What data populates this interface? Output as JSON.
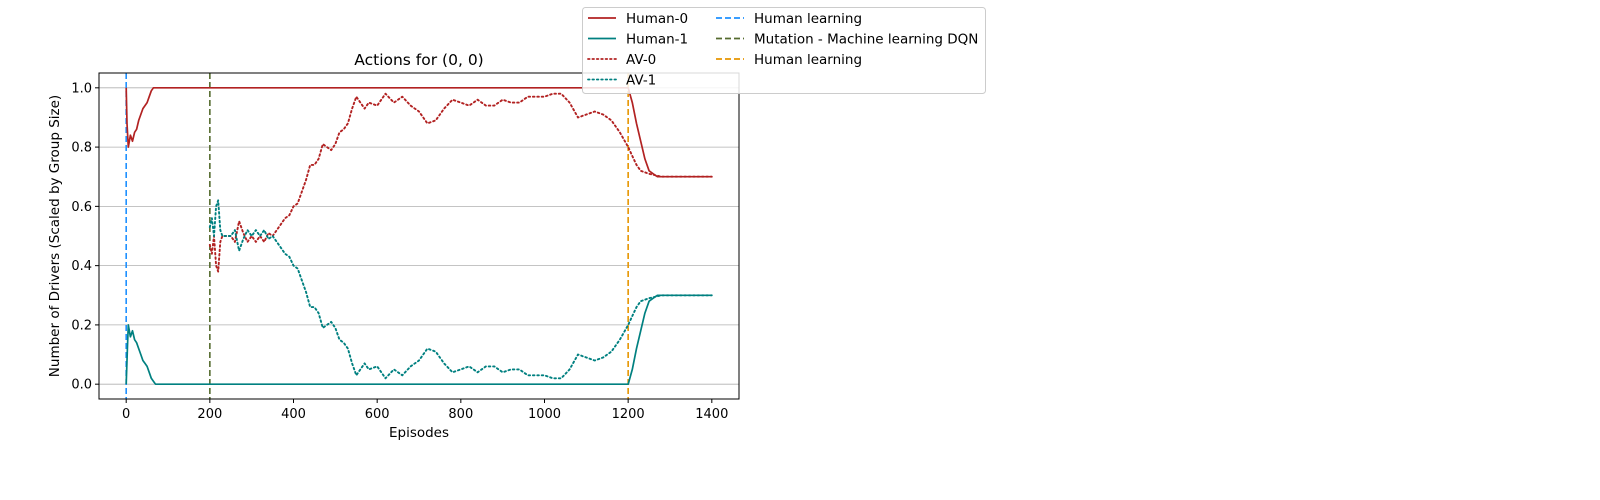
{
  "chart_data": {
    "type": "line",
    "title": "Actions for (0, 0)",
    "xlabel": "Episodes",
    "ylabel": "Number of Drivers (Scaled by Group Size)",
    "xlim": [
      -65,
      1465
    ],
    "ylim": [
      -0.05,
      1.05
    ],
    "xticks": [
      0,
      200,
      400,
      600,
      800,
      1000,
      1200,
      1400
    ],
    "yticks": [
      0.0,
      0.2,
      0.4,
      0.6,
      0.8,
      1.0
    ],
    "xtick_labels": [
      "0",
      "200",
      "400",
      "600",
      "800",
      "1000",
      "1200",
      "1400"
    ],
    "ytick_labels": [
      "0.0",
      "0.2",
      "0.4",
      "0.6",
      "0.8",
      "1.0"
    ],
    "grid": "y",
    "legend_position": "upper center, outside top-right of plot",
    "series": [
      {
        "name": "Human-0",
        "color": "#b22222",
        "style": "solid",
        "x": [
          0,
          2,
          5,
          10,
          15,
          20,
          25,
          30,
          35,
          40,
          45,
          50,
          55,
          60,
          65,
          70,
          75,
          80,
          200,
          600,
          1000,
          1200,
          1210,
          1220,
          1230,
          1240,
          1250,
          1260,
          1270,
          1280,
          1300,
          1400
        ],
        "y": [
          1.0,
          0.88,
          0.8,
          0.84,
          0.82,
          0.85,
          0.86,
          0.89,
          0.91,
          0.93,
          0.94,
          0.95,
          0.97,
          0.99,
          1.0,
          1.0,
          1.0,
          1.0,
          1.0,
          1.0,
          1.0,
          1.0,
          0.95,
          0.88,
          0.82,
          0.76,
          0.72,
          0.71,
          0.7,
          0.7,
          0.7,
          0.7
        ]
      },
      {
        "name": "Human-1",
        "color": "#008080",
        "style": "solid",
        "x": [
          0,
          3,
          5,
          10,
          15,
          20,
          25,
          30,
          35,
          40,
          45,
          50,
          55,
          60,
          65,
          70,
          75,
          80,
          200,
          600,
          1000,
          1200,
          1210,
          1220,
          1230,
          1240,
          1250,
          1260,
          1270,
          1280,
          1300,
          1400
        ],
        "y": [
          0.0,
          0.12,
          0.2,
          0.16,
          0.18,
          0.15,
          0.14,
          0.12,
          0.1,
          0.08,
          0.07,
          0.06,
          0.04,
          0.02,
          0.01,
          0.0,
          0.0,
          0.0,
          0.0,
          0.0,
          0.0,
          0.0,
          0.05,
          0.12,
          0.18,
          0.24,
          0.28,
          0.29,
          0.3,
          0.3,
          0.3,
          0.3
        ]
      },
      {
        "name": "AV-0",
        "color": "#b22222",
        "style": "dotted",
        "x": [
          200,
          205,
          210,
          215,
          220,
          225,
          230,
          240,
          250,
          260,
          270,
          280,
          290,
          300,
          310,
          320,
          330,
          340,
          350,
          360,
          370,
          380,
          390,
          400,
          410,
          420,
          430,
          440,
          450,
          460,
          470,
          480,
          490,
          500,
          510,
          520,
          530,
          540,
          550,
          560,
          570,
          580,
          600,
          620,
          640,
          660,
          680,
          700,
          720,
          740,
          760,
          780,
          800,
          820,
          840,
          860,
          880,
          900,
          920,
          940,
          960,
          980,
          1000,
          1020,
          1040,
          1060,
          1080,
          1100,
          1120,
          1140,
          1160,
          1180,
          1200,
          1210,
          1220,
          1230,
          1250,
          1280,
          1300,
          1400
        ],
        "y": [
          0.47,
          0.44,
          0.5,
          0.4,
          0.38,
          0.48,
          0.5,
          0.5,
          0.5,
          0.48,
          0.55,
          0.51,
          0.48,
          0.5,
          0.48,
          0.5,
          0.48,
          0.51,
          0.5,
          0.52,
          0.54,
          0.56,
          0.57,
          0.6,
          0.61,
          0.65,
          0.69,
          0.74,
          0.74,
          0.76,
          0.81,
          0.8,
          0.79,
          0.81,
          0.85,
          0.86,
          0.88,
          0.93,
          0.97,
          0.95,
          0.93,
          0.95,
          0.94,
          0.98,
          0.95,
          0.97,
          0.94,
          0.92,
          0.88,
          0.89,
          0.93,
          0.96,
          0.95,
          0.94,
          0.96,
          0.94,
          0.94,
          0.96,
          0.95,
          0.95,
          0.97,
          0.97,
          0.97,
          0.98,
          0.98,
          0.95,
          0.9,
          0.91,
          0.92,
          0.91,
          0.89,
          0.85,
          0.8,
          0.77,
          0.74,
          0.72,
          0.71,
          0.7,
          0.7,
          0.7
        ]
      },
      {
        "name": "AV-1",
        "color": "#008080",
        "style": "dotted",
        "x": [
          200,
          205,
          210,
          215,
          220,
          225,
          230,
          240,
          250,
          260,
          270,
          280,
          290,
          300,
          310,
          320,
          330,
          340,
          350,
          360,
          370,
          380,
          390,
          400,
          410,
          420,
          430,
          440,
          450,
          460,
          470,
          480,
          490,
          500,
          510,
          520,
          530,
          540,
          550,
          560,
          570,
          580,
          600,
          620,
          640,
          660,
          680,
          700,
          720,
          740,
          760,
          780,
          800,
          820,
          840,
          860,
          880,
          900,
          920,
          940,
          960,
          980,
          1000,
          1020,
          1040,
          1060,
          1080,
          1100,
          1120,
          1140,
          1160,
          1180,
          1200,
          1210,
          1220,
          1230,
          1250,
          1280,
          1300,
          1400
        ],
        "y": [
          0.53,
          0.56,
          0.5,
          0.6,
          0.62,
          0.52,
          0.5,
          0.5,
          0.5,
          0.52,
          0.45,
          0.49,
          0.52,
          0.5,
          0.52,
          0.5,
          0.52,
          0.49,
          0.5,
          0.48,
          0.46,
          0.44,
          0.43,
          0.4,
          0.39,
          0.35,
          0.31,
          0.26,
          0.26,
          0.24,
          0.19,
          0.2,
          0.21,
          0.19,
          0.15,
          0.14,
          0.12,
          0.07,
          0.03,
          0.05,
          0.07,
          0.05,
          0.06,
          0.02,
          0.05,
          0.03,
          0.06,
          0.08,
          0.12,
          0.11,
          0.07,
          0.04,
          0.05,
          0.06,
          0.04,
          0.06,
          0.06,
          0.04,
          0.05,
          0.05,
          0.03,
          0.03,
          0.03,
          0.02,
          0.02,
          0.05,
          0.1,
          0.09,
          0.08,
          0.09,
          0.11,
          0.15,
          0.2,
          0.23,
          0.26,
          0.28,
          0.29,
          0.3,
          0.3,
          0.3
        ]
      }
    ],
    "vlines": [
      {
        "name": "Human learning",
        "x": 0,
        "color": "#1e90ff"
      },
      {
        "name": "Mutation - Machine learning DQN",
        "x": 200,
        "color": "#556b2f"
      },
      {
        "name": "Human learning",
        "x": 1200,
        "color": "#e69500"
      }
    ]
  }
}
